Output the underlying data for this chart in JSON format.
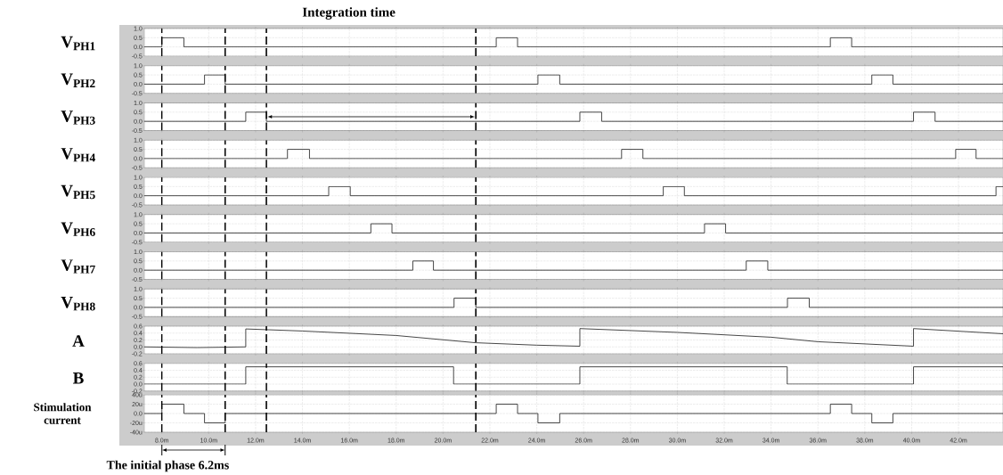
{
  "chart_data": [
    {
      "type": "step",
      "ylabel": "V$_{PH1}$",
      "x": [
        7.25,
        8.0,
        8.94,
        22.27,
        23.18,
        36.53,
        37.44,
        43.9
      ],
      "values": [
        0,
        0.5,
        0,
        0.5,
        0,
        0.5,
        0,
        0
      ],
      "color": "#333333",
      "line_style": "solid",
      "xlim": [
        7.25,
        43.9
      ],
      "xticks": [
        8,
        10,
        12,
        14,
        16,
        18,
        20,
        22,
        24,
        26,
        28,
        30,
        32,
        34,
        36,
        38,
        40,
        42
      ],
      "ylim": [
        -0.5,
        1.0
      ],
      "yticks": [
        -0.5,
        {
          "value": 0,
          "label": "0.0"
        },
        0.5,
        {
          "value": 1.0,
          "label": "1.0"
        }
      ],
      "grid": true,
      "tick_labels": "y",
      "ref_lines": [
        {
          "axis": "x",
          "value": 8.0,
          "line_style": "dashed",
          "color": "#000000"
        },
        {
          "axis": "x",
          "value": 10.7,
          "line_style": "dashed",
          "color": "#000000"
        },
        {
          "axis": "x",
          "value": 12.46,
          "line_style": "dashed",
          "color": "#000000"
        },
        {
          "axis": "x",
          "value": 21.4,
          "line_style": "dashed",
          "color": "#000000"
        }
      ]
    },
    {
      "type": "step",
      "ylabel": "V$_{PH2}$",
      "x": [
        7.25,
        9.82,
        10.7,
        24.05,
        24.98,
        38.3,
        39.2,
        43.9
      ],
      "values": [
        0,
        0.5,
        0,
        0.5,
        0,
        0.5,
        0,
        0
      ],
      "color": "#333333",
      "line_style": "solid",
      "xlim": [
        7.25,
        43.9
      ],
      "xticks": [
        8,
        10,
        12,
        14,
        16,
        18,
        20,
        22,
        24,
        26,
        28,
        30,
        32,
        34,
        36,
        38,
        40,
        42
      ],
      "ylim": [
        -0.5,
        1.0
      ],
      "yticks": [
        -0.5,
        {
          "value": 0,
          "label": "0.0"
        },
        0.5,
        {
          "value": 1.0,
          "label": "1.0"
        }
      ],
      "grid": true,
      "tick_labels": "y",
      "ref_lines": [
        {
          "axis": "x",
          "value": 8.0,
          "line_style": "dashed",
          "color": "#000000"
        },
        {
          "axis": "x",
          "value": 10.7,
          "line_style": "dashed",
          "color": "#000000"
        },
        {
          "axis": "x",
          "value": 12.46,
          "line_style": "dashed",
          "color": "#000000"
        },
        {
          "axis": "x",
          "value": 21.4,
          "line_style": "dashed",
          "color": "#000000"
        }
      ]
    },
    {
      "type": "step",
      "ylabel": "V$_{PH3}$",
      "x": [
        7.25,
        11.58,
        12.46,
        25.84,
        26.77,
        40.08,
        41.0,
        43.9
      ],
      "values": [
        0,
        0.5,
        0,
        0.5,
        0,
        0.5,
        0,
        0
      ],
      "color": "#333333",
      "line_style": "solid",
      "xlim": [
        7.25,
        43.9
      ],
      "xticks": [
        8,
        10,
        12,
        14,
        16,
        18,
        20,
        22,
        24,
        26,
        28,
        30,
        32,
        34,
        36,
        38,
        40,
        42
      ],
      "ylim": [
        -0.5,
        1.0
      ],
      "yticks": [
        -0.5,
        {
          "value": 0,
          "label": "0.0"
        },
        0.5,
        {
          "value": 1.0,
          "label": "1.0"
        }
      ],
      "grid": true,
      "tick_labels": "y",
      "annotations": [
        "Integration time"
      ],
      "ref_lines": [
        {
          "axis": "x",
          "value": 8.0,
          "line_style": "dashed",
          "color": "#000000"
        },
        {
          "axis": "x",
          "value": 10.7,
          "line_style": "dashed",
          "color": "#000000"
        },
        {
          "axis": "x",
          "value": 12.46,
          "line_style": "dashed",
          "color": "#000000"
        },
        {
          "axis": "x",
          "value": 21.4,
          "line_style": "dashed",
          "color": "#000000"
        }
      ]
    },
    {
      "type": "step",
      "ylabel": "V$_{PH4}$",
      "x": [
        7.25,
        13.36,
        14.3,
        27.62,
        28.53,
        41.88,
        42.75,
        43.9
      ],
      "values": [
        0,
        0.5,
        0,
        0.5,
        0,
        0.5,
        0,
        0
      ],
      "color": "#333333",
      "line_style": "solid",
      "xlim": [
        7.25,
        43.9
      ],
      "xticks": [
        8,
        10,
        12,
        14,
        16,
        18,
        20,
        22,
        24,
        26,
        28,
        30,
        32,
        34,
        36,
        38,
        40,
        42
      ],
      "ylim": [
        -0.5,
        1.0
      ],
      "yticks": [
        -0.5,
        {
          "value": 0,
          "label": "0.0"
        },
        0.5,
        {
          "value": 1.0,
          "label": "1.0"
        }
      ],
      "grid": true,
      "tick_labels": "y",
      "ref_lines": [
        {
          "axis": "x",
          "value": 8.0,
          "line_style": "dashed",
          "color": "#000000"
        },
        {
          "axis": "x",
          "value": 10.7,
          "line_style": "dashed",
          "color": "#000000"
        },
        {
          "axis": "x",
          "value": 12.46,
          "line_style": "dashed",
          "color": "#000000"
        },
        {
          "axis": "x",
          "value": 21.4,
          "line_style": "dashed",
          "color": "#000000"
        }
      ]
    },
    {
      "type": "step",
      "ylabel": "V$_{PH5}$",
      "x": [
        7.25,
        15.12,
        16.04,
        29.4,
        30.3,
        43.6,
        43.9
      ],
      "values": [
        0,
        0.5,
        0,
        0.5,
        0,
        0.5,
        0.5
      ],
      "color": "#333333",
      "line_style": "solid",
      "xlim": [
        7.25,
        43.9
      ],
      "xticks": [
        8,
        10,
        12,
        14,
        16,
        18,
        20,
        22,
        24,
        26,
        28,
        30,
        32,
        34,
        36,
        38,
        40,
        42
      ],
      "ylim": [
        -0.5,
        1.0
      ],
      "yticks": [
        -0.5,
        {
          "value": 0,
          "label": "0.0"
        },
        0.5,
        {
          "value": 1.0,
          "label": "1.0"
        }
      ],
      "grid": true,
      "tick_labels": "y",
      "ref_lines": [
        {
          "axis": "x",
          "value": 8.0,
          "line_style": "dashed",
          "color": "#000000"
        },
        {
          "axis": "x",
          "value": 10.7,
          "line_style": "dashed",
          "color": "#000000"
        },
        {
          "axis": "x",
          "value": 12.46,
          "line_style": "dashed",
          "color": "#000000"
        },
        {
          "axis": "x",
          "value": 21.4,
          "line_style": "dashed",
          "color": "#000000"
        }
      ]
    },
    {
      "type": "step",
      "ylabel": "V$_{PH6}$",
      "x": [
        7.25,
        16.92,
        17.82,
        31.16,
        32.06,
        43.9
      ],
      "values": [
        0,
        0.5,
        0,
        0.5,
        0,
        0
      ],
      "color": "#333333",
      "line_style": "solid",
      "xlim": [
        7.25,
        43.9
      ],
      "xticks": [
        8,
        10,
        12,
        14,
        16,
        18,
        20,
        22,
        24,
        26,
        28,
        30,
        32,
        34,
        36,
        38,
        40,
        42
      ],
      "ylim": [
        -0.5,
        1.0
      ],
      "yticks": [
        -0.5,
        {
          "value": 0,
          "label": "0.0"
        },
        0.5,
        {
          "value": 1.0,
          "label": "1.0"
        }
      ],
      "grid": true,
      "tick_labels": "y",
      "ref_lines": [
        {
          "axis": "x",
          "value": 8.0,
          "line_style": "dashed",
          "color": "#000000"
        },
        {
          "axis": "x",
          "value": 10.7,
          "line_style": "dashed",
          "color": "#000000"
        },
        {
          "axis": "x",
          "value": 12.46,
          "line_style": "dashed",
          "color": "#000000"
        },
        {
          "axis": "x",
          "value": 21.4,
          "line_style": "dashed",
          "color": "#000000"
        }
      ]
    },
    {
      "type": "step",
      "ylabel": "V$_{PH7}$",
      "x": [
        7.25,
        18.71,
        19.59,
        32.94,
        33.86,
        43.9
      ],
      "values": [
        0,
        0.5,
        0,
        0.5,
        0,
        0
      ],
      "color": "#333333",
      "line_style": "solid",
      "xlim": [
        7.25,
        43.9
      ],
      "xticks": [
        8,
        10,
        12,
        14,
        16,
        18,
        20,
        22,
        24,
        26,
        28,
        30,
        32,
        34,
        36,
        38,
        40,
        42
      ],
      "ylim": [
        -0.5,
        1.0
      ],
      "yticks": [
        -0.5,
        {
          "value": 0,
          "label": "0.0"
        },
        0.5,
        {
          "value": 1.0,
          "label": "1.0"
        }
      ],
      "grid": true,
      "tick_labels": "y",
      "ref_lines": [
        {
          "axis": "x",
          "value": 8.0,
          "line_style": "dashed",
          "color": "#000000"
        },
        {
          "axis": "x",
          "value": 10.7,
          "line_style": "dashed",
          "color": "#000000"
        },
        {
          "axis": "x",
          "value": 12.46,
          "line_style": "dashed",
          "color": "#000000"
        },
        {
          "axis": "x",
          "value": 21.4,
          "line_style": "dashed",
          "color": "#000000"
        }
      ]
    },
    {
      "type": "step",
      "ylabel": "V$_{PH8}$",
      "x": [
        7.25,
        20.47,
        21.4,
        34.7,
        35.63,
        43.9
      ],
      "values": [
        0,
        0.5,
        0,
        0.5,
        0,
        0
      ],
      "color": "#333333",
      "line_style": "solid",
      "xlim": [
        7.25,
        43.9
      ],
      "xticks": [
        8,
        10,
        12,
        14,
        16,
        18,
        20,
        22,
        24,
        26,
        28,
        30,
        32,
        34,
        36,
        38,
        40,
        42
      ],
      "ylim": [
        -0.5,
        1.0
      ],
      "yticks": [
        -0.5,
        {
          "value": 0,
          "label": "0.0"
        },
        0.5,
        {
          "value": 1.0,
          "label": "1.0"
        }
      ],
      "grid": true,
      "tick_labels": "y",
      "ref_lines": [
        {
          "axis": "x",
          "value": 8.0,
          "line_style": "dashed",
          "color": "#000000"
        },
        {
          "axis": "x",
          "value": 10.7,
          "line_style": "dashed",
          "color": "#000000"
        },
        {
          "axis": "x",
          "value": 12.46,
          "line_style": "dashed",
          "color": "#000000"
        },
        {
          "axis": "x",
          "value": 21.4,
          "line_style": "dashed",
          "color": "#000000"
        }
      ]
    },
    {
      "type": "line",
      "ylabel": "A",
      "x": [
        7.25,
        9.5,
        11.58,
        11.58,
        14,
        18,
        21.4,
        24,
        25.84,
        25.84,
        30,
        34,
        36,
        40.08,
        40.08,
        43.9
      ],
      "values": [
        0.0,
        -0.02,
        0.0,
        0.52,
        0.46,
        0.33,
        0.12,
        0.05,
        0.02,
        0.53,
        0.42,
        0.28,
        0.15,
        0.02,
        0.53,
        0.38
      ],
      "color": "#333333",
      "line_style": "solid",
      "xlim": [
        7.25,
        43.9
      ],
      "xticks": [
        8,
        10,
        12,
        14,
        16,
        18,
        20,
        22,
        24,
        26,
        28,
        30,
        32,
        34,
        36,
        38,
        40,
        42
      ],
      "ylim": [
        -0.2,
        0.6
      ],
      "yticks": [
        -0.2,
        {
          "value": 0,
          "label": "0.0"
        },
        0.2,
        0.4,
        0.6
      ],
      "grid": true,
      "tick_labels": "y",
      "ref_lines": [
        {
          "axis": "x",
          "value": 8.0,
          "line_style": "dashed",
          "color": "#000000"
        },
        {
          "axis": "x",
          "value": 10.7,
          "line_style": "dashed",
          "color": "#000000"
        },
        {
          "axis": "x",
          "value": 12.46,
          "line_style": "dashed",
          "color": "#000000"
        },
        {
          "axis": "x",
          "value": 21.4,
          "line_style": "dashed",
          "color": "#000000"
        }
      ]
    },
    {
      "type": "step",
      "ylabel": "B",
      "x": [
        7.25,
        11.58,
        20.45,
        25.84,
        34.69,
        40.08,
        43.9
      ],
      "values": [
        0,
        0.5,
        0,
        0.5,
        0,
        0.5,
        0.5
      ],
      "color": "#333333",
      "line_style": "solid",
      "xlim": [
        7.25,
        43.9
      ],
      "xticks": [
        8,
        10,
        12,
        14,
        16,
        18,
        20,
        22,
        24,
        26,
        28,
        30,
        32,
        34,
        36,
        38,
        40,
        42
      ],
      "ylim": [
        -0.2,
        0.6
      ],
      "yticks": [
        -0.2,
        {
          "value": 0,
          "label": "0.0"
        },
        0.2,
        0.4,
        0.6
      ],
      "grid": true,
      "tick_labels": "y",
      "ref_lines": [
        {
          "axis": "x",
          "value": 8.0,
          "line_style": "dashed",
          "color": "#000000"
        },
        {
          "axis": "x",
          "value": 10.7,
          "line_style": "dashed",
          "color": "#000000"
        },
        {
          "axis": "x",
          "value": 12.46,
          "line_style": "dashed",
          "color": "#000000"
        },
        {
          "axis": "x",
          "value": 21.4,
          "line_style": "dashed",
          "color": "#000000"
        }
      ]
    },
    {
      "type": "step",
      "ylabel": "Stimulation current",
      "x": [
        7.25,
        8.0,
        8.94,
        9.82,
        10.7,
        22.27,
        23.18,
        24.05,
        24.98,
        36.53,
        37.44,
        38.3,
        39.2,
        43.9
      ],
      "values": [
        0,
        20,
        0,
        -20,
        0,
        20,
        0,
        -20,
        0,
        20,
        0,
        -20,
        0,
        0
      ],
      "color": "#333333",
      "line_style": "solid",
      "xlim": [
        7.25,
        43.9
      ],
      "xticks": [
        {
          "value": 8,
          "label": "8.0m"
        },
        {
          "value": 10,
          "label": "10.0m"
        },
        {
          "value": 12,
          "label": "12.0m"
        },
        {
          "value": 14,
          "label": "14.0m"
        },
        {
          "value": 16,
          "label": "16.0m"
        },
        {
          "value": 18,
          "label": "18.0m"
        },
        {
          "value": 20,
          "label": "20.0m"
        },
        {
          "value": 22,
          "label": "22.0m"
        },
        {
          "value": 24,
          "label": "24.0m"
        },
        {
          "value": 26,
          "label": "26.0m"
        },
        {
          "value": 28,
          "label": "28.0m"
        },
        {
          "value": 30,
          "label": "30.0m"
        },
        {
          "value": 32,
          "label": "32.0m"
        },
        {
          "value": 34,
          "label": "34.0m"
        },
        {
          "value": 36,
          "label": "36.0m"
        },
        {
          "value": 38,
          "label": "38.0m"
        },
        {
          "value": 40,
          "label": "40.0m"
        },
        {
          "value": 42,
          "label": "42.0m"
        }
      ],
      "ylim": [
        -40,
        40
      ],
      "yticks": [
        {
          "value": -40,
          "label": "-40u"
        },
        {
          "value": -20,
          "label": "-20u"
        },
        {
          "value": 0,
          "label": "0.0"
        },
        {
          "value": 20,
          "label": "20u"
        },
        {
          "value": 40,
          "label": "40u"
        }
      ],
      "grid": true,
      "annotations": [
        "The initial phase 6.2ms"
      ],
      "ref_lines": [
        {
          "axis": "x",
          "value": 8.0,
          "line_style": "dashed",
          "color": "#000000"
        },
        {
          "axis": "x",
          "value": 10.7,
          "line_style": "dashed",
          "color": "#000000"
        },
        {
          "axis": "x",
          "value": 12.46,
          "line_style": "dashed",
          "color": "#000000"
        },
        {
          "axis": "x",
          "value": 21.4,
          "line_style": "dashed",
          "color": "#000000"
        }
      ]
    }
  ]
}
